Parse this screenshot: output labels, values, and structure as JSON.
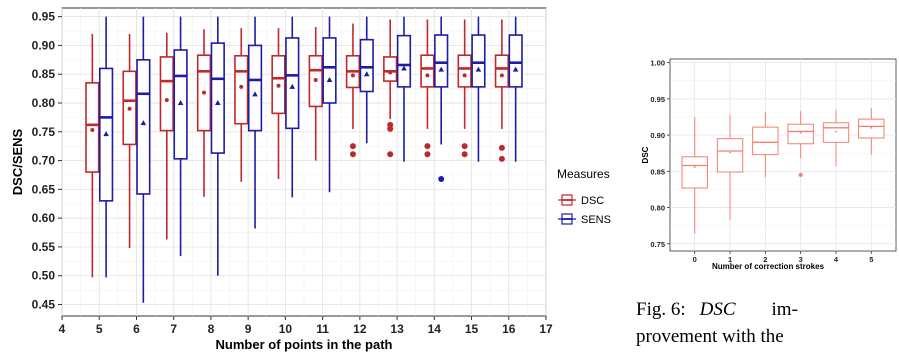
{
  "chart_data": [
    {
      "type": "box",
      "xlabel": "Number of points in the path",
      "ylabel": "DSC/SENS",
      "xlim": [
        4,
        17
      ],
      "ylim": [
        0.43,
        0.965
      ],
      "x_ticks": [
        "4",
        "5",
        "6",
        "7",
        "8",
        "9",
        "10",
        "11",
        "12",
        "13",
        "14",
        "15",
        "16",
        "17"
      ],
      "y_ticks": [
        "0.45",
        "0.50",
        "0.55",
        "0.60",
        "0.65",
        "0.70",
        "0.75",
        "0.80",
        "0.85",
        "0.90",
        "0.95"
      ],
      "grid": true,
      "legend": {
        "title": "Measures",
        "placement": "right",
        "entries": [
          "DSC",
          "SENS"
        ]
      },
      "categories": [
        5,
        6,
        7,
        8,
        9,
        10,
        11,
        12,
        13,
        14,
        15,
        16
      ],
      "series": [
        {
          "name": "DSC",
          "color": "#c0282b",
          "mean_marker": "dot",
          "boxes": [
            {
              "x": 5,
              "lo": 0.497,
              "q1": 0.68,
              "med": 0.762,
              "q3": 0.835,
              "hi": 0.92,
              "mean": 0.753,
              "outliers": []
            },
            {
              "x": 6,
              "lo": 0.548,
              "q1": 0.728,
              "med": 0.804,
              "q3": 0.855,
              "hi": 0.92,
              "mean": 0.79,
              "outliers": []
            },
            {
              "x": 7,
              "lo": 0.563,
              "q1": 0.752,
              "med": 0.838,
              "q3": 0.88,
              "hi": 0.922,
              "mean": 0.805,
              "outliers": []
            },
            {
              "x": 8,
              "lo": 0.637,
              "q1": 0.752,
              "med": 0.855,
              "q3": 0.883,
              "hi": 0.928,
              "mean": 0.818,
              "outliers": []
            },
            {
              "x": 9,
              "lo": 0.663,
              "q1": 0.764,
              "med": 0.855,
              "q3": 0.882,
              "hi": 0.93,
              "mean": 0.828,
              "outliers": []
            },
            {
              "x": 10,
              "lo": 0.668,
              "q1": 0.782,
              "med": 0.843,
              "q3": 0.882,
              "hi": 0.93,
              "mean": 0.83,
              "outliers": []
            },
            {
              "x": 11,
              "lo": 0.7,
              "q1": 0.794,
              "med": 0.857,
              "q3": 0.882,
              "hi": 0.932,
              "mean": 0.84,
              "outliers": []
            },
            {
              "x": 12,
              "lo": 0.755,
              "q1": 0.827,
              "med": 0.855,
              "q3": 0.882,
              "hi": 0.938,
              "mean": 0.848,
              "outliers": [
                0.725,
                0.711
              ]
            },
            {
              "x": 13,
              "lo": 0.772,
              "q1": 0.838,
              "med": 0.855,
              "q3": 0.88,
              "hi": 0.945,
              "mean": 0.853,
              "outliers": [
                0.762,
                0.755,
                0.711
              ]
            },
            {
              "x": 14,
              "lo": 0.755,
              "q1": 0.828,
              "med": 0.86,
              "q3": 0.883,
              "hi": 0.945,
              "mean": 0.848,
              "outliers": [
                0.725,
                0.711
              ]
            },
            {
              "x": 15,
              "lo": 0.755,
              "q1": 0.828,
              "med": 0.86,
              "q3": 0.883,
              "hi": 0.945,
              "mean": 0.848,
              "outliers": [
                0.725,
                0.711
              ]
            },
            {
              "x": 16,
              "lo": 0.755,
              "q1": 0.828,
              "med": 0.86,
              "q3": 0.883,
              "hi": 0.945,
              "mean": 0.848,
              "outliers": [
                0.722,
                0.703
              ]
            }
          ]
        },
        {
          "name": "SENS",
          "color": "#1c1ca8",
          "mean_marker": "triangle",
          "boxes": [
            {
              "x": 5,
              "lo": 0.497,
              "q1": 0.63,
              "med": 0.775,
              "q3": 0.86,
              "hi": 0.95,
              "mean": 0.746,
              "outliers": []
            },
            {
              "x": 6,
              "lo": 0.453,
              "q1": 0.642,
              "med": 0.816,
              "q3": 0.875,
              "hi": 0.95,
              "mean": 0.765,
              "outliers": []
            },
            {
              "x": 7,
              "lo": 0.534,
              "q1": 0.703,
              "med": 0.847,
              "q3": 0.892,
              "hi": 0.95,
              "mean": 0.8,
              "outliers": []
            },
            {
              "x": 8,
              "lo": 0.5,
              "q1": 0.713,
              "med": 0.842,
              "q3": 0.904,
              "hi": 0.95,
              "mean": 0.8,
              "outliers": []
            },
            {
              "x": 9,
              "lo": 0.582,
              "q1": 0.752,
              "med": 0.84,
              "q3": 0.9,
              "hi": 0.95,
              "mean": 0.815,
              "outliers": []
            },
            {
              "x": 10,
              "lo": 0.636,
              "q1": 0.756,
              "med": 0.848,
              "q3": 0.913,
              "hi": 0.95,
              "mean": 0.828,
              "outliers": []
            },
            {
              "x": 11,
              "lo": 0.645,
              "q1": 0.8,
              "med": 0.862,
              "q3": 0.913,
              "hi": 0.95,
              "mean": 0.84,
              "outliers": []
            },
            {
              "x": 12,
              "lo": 0.73,
              "q1": 0.82,
              "med": 0.862,
              "q3": 0.91,
              "hi": 0.95,
              "mean": 0.85,
              "outliers": []
            },
            {
              "x": 13,
              "lo": 0.698,
              "q1": 0.828,
              "med": 0.866,
              "q3": 0.917,
              "hi": 0.95,
              "mean": 0.86,
              "outliers": []
            },
            {
              "x": 14,
              "lo": 0.728,
              "q1": 0.828,
              "med": 0.87,
              "q3": 0.918,
              "hi": 0.95,
              "mean": 0.858,
              "outliers": [
                0.668
              ]
            },
            {
              "x": 15,
              "lo": 0.698,
              "q1": 0.828,
              "med": 0.87,
              "q3": 0.918,
              "hi": 0.95,
              "mean": 0.858,
              "outliers": []
            },
            {
              "x": 16,
              "lo": 0.698,
              "q1": 0.828,
              "med": 0.87,
              "q3": 0.918,
              "hi": 0.95,
              "mean": 0.858,
              "outliers": []
            }
          ]
        }
      ]
    },
    {
      "type": "box",
      "xlabel": "Number of correction strokes",
      "ylabel": "DSC",
      "ylim": [
        0.74,
        1.005
      ],
      "y_ticks": [
        "0.75",
        "0.80",
        "0.85",
        "0.90",
        "0.95",
        "1.00"
      ],
      "categories": [
        "0",
        "1",
        "2",
        "3",
        "4",
        "5"
      ],
      "grid": true,
      "series": [
        {
          "color": "#f08070",
          "boxes": [
            {
              "x": "0",
              "lo": 0.764,
              "q1": 0.827,
              "med": 0.858,
              "q3": 0.87,
              "hi": 0.925,
              "mean": 0.856,
              "outliers": []
            },
            {
              "x": "1",
              "lo": 0.783,
              "q1": 0.849,
              "med": 0.878,
              "q3": 0.895,
              "hi": 0.928,
              "mean": 0.876,
              "outliers": []
            },
            {
              "x": "2",
              "lo": 0.842,
              "q1": 0.873,
              "med": 0.89,
              "q3": 0.911,
              "hi": 0.932,
              "mean": 0.89,
              "outliers": []
            },
            {
              "x": "3",
              "lo": 0.868,
              "q1": 0.888,
              "med": 0.905,
              "q3": 0.915,
              "hi": 0.933,
              "mean": 0.903,
              "outliers": [
                0.845
              ]
            },
            {
              "x": "4",
              "lo": 0.857,
              "q1": 0.89,
              "med": 0.91,
              "q3": 0.917,
              "hi": 0.935,
              "mean": 0.905,
              "outliers": []
            },
            {
              "x": "5",
              "lo": 0.873,
              "q1": 0.896,
              "med": 0.912,
              "q3": 0.922,
              "hi": 0.937,
              "mean": 0.91,
              "outliers": []
            }
          ]
        }
      ]
    }
  ],
  "caption": {
    "label": "Fig. 6:",
    "math": "DSC",
    "line1_end": "im-",
    "line2": "provement with the"
  }
}
